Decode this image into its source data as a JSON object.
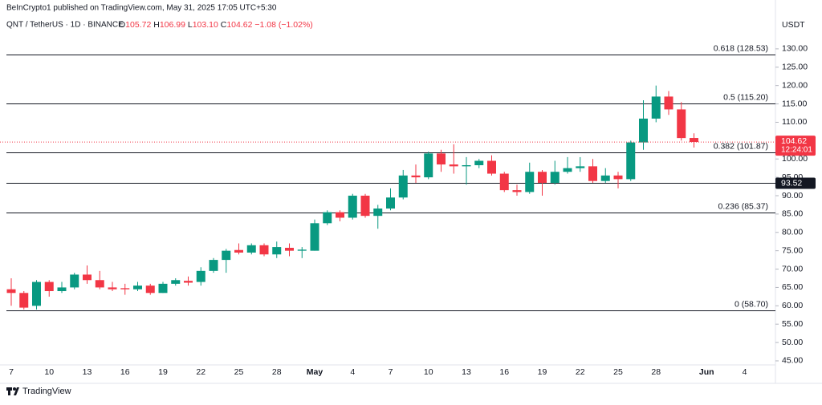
{
  "header": {
    "published": "BeInCrypto1 published on TradingView.com, May 31, 2025 17:05 UTC+5:30",
    "symbol": "QNT / TetherUS · 1D · BINANCE",
    "ohlc": [
      {
        "prefix": "O",
        "value": 105.72,
        "label": "105.72"
      },
      {
        "prefix": "H",
        "value": 106.99,
        "label": "106.99"
      },
      {
        "prefix": "L",
        "value": 103.1,
        "label": "103.10"
      },
      {
        "prefix": "C",
        "value": 104.62,
        "label": "104.62"
      }
    ],
    "change": {
      "value": -1.08,
      "label": "−1.08"
    },
    "change_pct": {
      "value": -1.02,
      "label": "(−1.02%)"
    }
  },
  "chart_data": {
    "type": "candlestick",
    "axis_unit": "USDT",
    "categories": [
      "7",
      null,
      null,
      "10",
      null,
      null,
      "13",
      null,
      null,
      "16",
      null,
      null,
      "19",
      null,
      null,
      "22",
      null,
      null,
      "25",
      null,
      null,
      "28",
      null,
      null,
      "May",
      null,
      null,
      "4",
      null,
      null,
      "7",
      null,
      null,
      "10",
      null,
      null,
      "13",
      null,
      null,
      "16",
      null,
      null,
      "19",
      null,
      null,
      "22",
      null,
      null,
      "25",
      null,
      null,
      "28",
      null,
      null,
      null
    ],
    "future_categories": [
      "Jun",
      null,
      null,
      "4"
    ],
    "open": [
      64.5,
      63.5,
      60,
      66.5,
      64,
      65,
      68.5,
      67,
      65,
      64.8,
      64.5,
      65.5,
      63.5,
      66,
      66.8,
      66.5,
      69.5,
      72.5,
      75.2,
      74.5,
      76.5,
      74,
      75.8,
      75,
      75,
      82.5,
      85.5,
      84,
      90,
      84.5,
      86.5,
      89.5,
      95.5,
      95,
      101.5,
      98.5,
      98,
      98.3,
      99.5,
      96,
      91.5,
      91,
      96.5,
      93.5,
      96.5,
      97.5,
      98,
      94,
      95.5,
      94.5,
      104.5,
      111,
      117,
      113.5,
      105.72
    ],
    "high": [
      67.5,
      64,
      67,
      67,
      66.5,
      69,
      71,
      69.5,
      66.5,
      66,
      66.5,
      66,
      66.5,
      67.5,
      68,
      70.5,
      73,
      75.5,
      77,
      77,
      77,
      77.5,
      77,
      76,
      83.5,
      86,
      86,
      90.5,
      90.5,
      87.5,
      92,
      97,
      98.5,
      102,
      102.5,
      104,
      100.5,
      100,
      101,
      96.5,
      93,
      99,
      97,
      99.5,
      100.5,
      100.5,
      100,
      97.5,
      96.5,
      105,
      116,
      120,
      118.5,
      115.5,
      106.99
    ],
    "low": [
      60,
      59,
      59,
      62.5,
      63.5,
      64.5,
      66,
      64.5,
      64,
      63,
      64,
      63,
      63.5,
      65.5,
      65.5,
      65.5,
      69,
      69,
      74,
      74,
      73.5,
      73,
      73.5,
      73,
      75,
      82,
      83,
      83.5,
      84,
      81,
      86,
      89,
      93.5,
      94.5,
      96.5,
      96,
      93,
      97.5,
      95.5,
      91,
      90,
      90.5,
      90,
      93,
      96,
      96.5,
      93.5,
      93.5,
      92,
      94,
      102.5,
      110,
      112,
      105,
      103.1
    ],
    "close": [
      63.5,
      59.5,
      66.5,
      64,
      65,
      68.5,
      67,
      65,
      64.5,
      64.5,
      65.5,
      63.5,
      66,
      67,
      66.3,
      69.5,
      72.5,
      75,
      74.5,
      76.5,
      74,
      76,
      75,
      75.3,
      82.5,
      85.5,
      84,
      90,
      84.5,
      86.5,
      89.5,
      95.5,
      95,
      101.5,
      98.5,
      98,
      98.3,
      99.5,
      96,
      91.5,
      91,
      96.5,
      93.5,
      96.5,
      97.5,
      98,
      94,
      95.5,
      94.5,
      104.5,
      111,
      117,
      113.5,
      105.7,
      104.62
    ],
    "colors": {
      "up": "#089981",
      "down": "#f23645"
    },
    "ylim": [
      43.9,
      138.5
    ],
    "yticks": [
      {
        "value": 45,
        "label": "45.00"
      },
      {
        "value": 50,
        "label": "50.00"
      },
      {
        "value": 55,
        "label": "55.00"
      },
      {
        "value": 60,
        "label": "60.00"
      },
      {
        "value": 65,
        "label": "65.00"
      },
      {
        "value": 70,
        "label": "70.00"
      },
      {
        "value": 75,
        "label": "75.00"
      },
      {
        "value": 80,
        "label": "80.00"
      },
      {
        "value": 85,
        "label": "85.00"
      },
      {
        "value": 90,
        "label": "90.00"
      },
      {
        "value": 95,
        "label": "95.00"
      },
      {
        "value": 100,
        "label": "100.00"
      },
      {
        "value": 105,
        "label": "105.00"
      },
      {
        "value": 110,
        "label": "110.00"
      },
      {
        "value": 115,
        "label": "115.00"
      },
      {
        "value": 120,
        "label": "120.00"
      },
      {
        "value": 125,
        "label": "125.00"
      },
      {
        "value": 130,
        "label": "130.00"
      }
    ],
    "levels": [
      {
        "value": 128.53,
        "label": "0.618 (128.53)"
      },
      {
        "value": 115.2,
        "label": "0.5 (115.20)"
      },
      {
        "value": 101.87,
        "label": "0.382 (101.87)"
      },
      {
        "value": 85.37,
        "label": "0.236 (85.37)"
      },
      {
        "value": 58.7,
        "label": "0 (58.70)"
      }
    ],
    "marked_line": 93.52,
    "last_price": 104.62,
    "countdown": "12:24:01"
  },
  "footer": {
    "brand": "TradingView"
  }
}
